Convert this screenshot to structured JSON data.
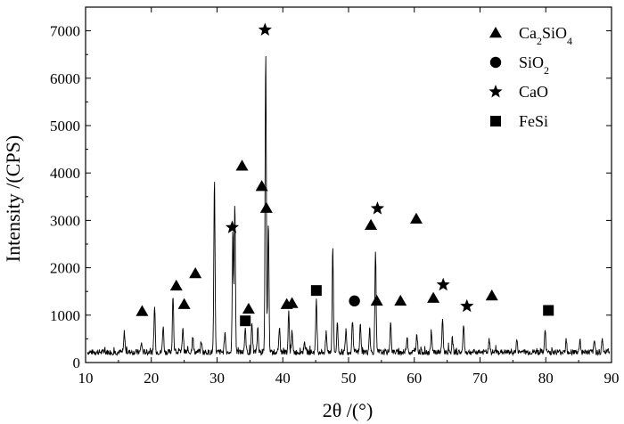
{
  "chart_data": {
    "type": "line",
    "xlabel": "2θ /(°)",
    "ylabel": "Intensity /(CPS)",
    "xlim": [
      10,
      90
    ],
    "ylim": [
      0,
      7500
    ],
    "xticks": [
      10,
      20,
      30,
      40,
      50,
      60,
      70,
      80,
      90
    ],
    "yticks": [
      0,
      1000,
      2000,
      3000,
      4000,
      5000,
      6000,
      7000
    ],
    "baseline": 220,
    "peaks": [
      [
        15.9,
        650
      ],
      [
        18.5,
        420
      ],
      [
        20.5,
        1200
      ],
      [
        21.8,
        780
      ],
      [
        23.3,
        1450
      ],
      [
        24.8,
        760
      ],
      [
        26.3,
        580
      ],
      [
        27.6,
        460
      ],
      [
        29.6,
        3850
      ],
      [
        31.2,
        650
      ],
      [
        32.4,
        2800
      ],
      [
        32.7,
        3400
      ],
      [
        34.3,
        700
      ],
      [
        35.3,
        820
      ],
      [
        36.2,
        750
      ],
      [
        37.4,
        6620
      ],
      [
        37.8,
        3000
      ],
      [
        39.5,
        720
      ],
      [
        40.9,
        1050
      ],
      [
        41.4,
        640
      ],
      [
        43.3,
        480
      ],
      [
        45.1,
        1350
      ],
      [
        46.6,
        620
      ],
      [
        47.6,
        2480
      ],
      [
        48.3,
        850
      ],
      [
        49.6,
        700
      ],
      [
        50.6,
        920
      ],
      [
        51.8,
        820
      ],
      [
        53.2,
        700
      ],
      [
        54.1,
        2350
      ],
      [
        56.4,
        900
      ],
      [
        58.9,
        560
      ],
      [
        60.4,
        600
      ],
      [
        62.6,
        580
      ],
      [
        64.3,
        950
      ],
      [
        65.8,
        500
      ],
      [
        67.5,
        780
      ],
      [
        71.4,
        480
      ],
      [
        75.6,
        480
      ],
      [
        79.9,
        680
      ],
      [
        83.1,
        520
      ],
      [
        85.2,
        500
      ],
      [
        87.4,
        460
      ],
      [
        88.6,
        480
      ]
    ],
    "markers": [
      {
        "phase": "Ca2SiO4",
        "x": 18.6,
        "y": 1080
      },
      {
        "phase": "Ca2SiO4",
        "x": 23.8,
        "y": 1620
      },
      {
        "phase": "Ca2SiO4",
        "x": 25.0,
        "y": 1230
      },
      {
        "phase": "Ca2SiO4",
        "x": 26.7,
        "y": 1880
      },
      {
        "phase": "Ca2SiO4",
        "x": 33.8,
        "y": 4150
      },
      {
        "phase": "Ca2SiO4",
        "x": 34.8,
        "y": 1130
      },
      {
        "phase": "Ca2SiO4",
        "x": 36.8,
        "y": 3720
      },
      {
        "phase": "Ca2SiO4",
        "x": 37.5,
        "y": 3260
      },
      {
        "phase": "Ca2SiO4",
        "x": 40.6,
        "y": 1230
      },
      {
        "phase": "Ca2SiO4",
        "x": 41.4,
        "y": 1250
      },
      {
        "phase": "Ca2SiO4",
        "x": 53.4,
        "y": 2900
      },
      {
        "phase": "Ca2SiO4",
        "x": 54.3,
        "y": 1300
      },
      {
        "phase": "Ca2SiO4",
        "x": 57.9,
        "y": 1300
      },
      {
        "phase": "Ca2SiO4",
        "x": 60.3,
        "y": 3030
      },
      {
        "phase": "Ca2SiO4",
        "x": 62.9,
        "y": 1360
      },
      {
        "phase": "Ca2SiO4",
        "x": 71.8,
        "y": 1410
      },
      {
        "phase": "SiO2",
        "x": 50.9,
        "y": 1300
      },
      {
        "phase": "CaO",
        "x": 32.3,
        "y": 2850
      },
      {
        "phase": "CaO",
        "x": 37.3,
        "y": 7020
      },
      {
        "phase": "CaO",
        "x": 54.4,
        "y": 3250
      },
      {
        "phase": "CaO",
        "x": 64.4,
        "y": 1640
      },
      {
        "phase": "CaO",
        "x": 68.0,
        "y": 1190
      },
      {
        "phase": "FeSi",
        "x": 34.3,
        "y": 880
      },
      {
        "phase": "FeSi",
        "x": 45.1,
        "y": 1520
      },
      {
        "phase": "FeSi",
        "x": 80.4,
        "y": 1100
      }
    ],
    "legend": {
      "placement": "top-right",
      "entries": [
        {
          "symbol": "triangle",
          "label": "Ca",
          "sub1": "2",
          "label2": "SiO",
          "sub2": "4"
        },
        {
          "symbol": "circle",
          "label": "SiO",
          "sub1": "2",
          "label2": "",
          "sub2": ""
        },
        {
          "symbol": "star",
          "label": "CaO",
          "sub1": "",
          "label2": "",
          "sub2": ""
        },
        {
          "symbol": "square",
          "label": "FeSi",
          "sub1": "",
          "label2": "",
          "sub2": ""
        }
      ]
    },
    "grid": false
  }
}
